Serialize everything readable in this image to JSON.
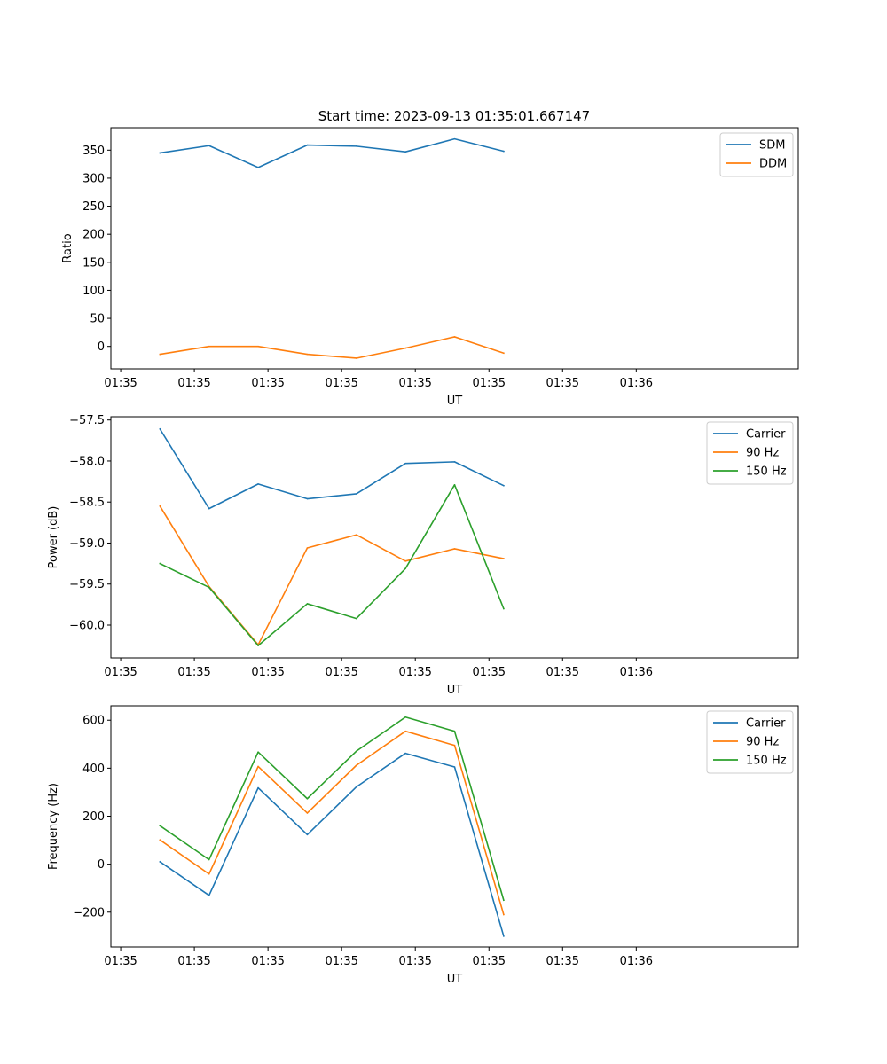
{
  "figure_title": "Start time: 2023-09-13 01:35:01.667147",
  "colors": {
    "c0": "#1f77b4",
    "c1": "#ff7f0e",
    "c2": "#2ca02c"
  },
  "chart_data": [
    {
      "type": "line",
      "title": "Start time: 2023-09-13 01:35:01.667147",
      "xlabel": "UT",
      "ylabel": "Ratio",
      "xlim": [
        0,
        7
      ],
      "x": [
        0.5,
        1.0,
        1.5,
        2.0,
        2.5,
        3.0,
        3.5,
        4.0
      ],
      "xtick_values": [
        0.1,
        0.85,
        1.6,
        2.35,
        3.1,
        3.85,
        4.6,
        5.35
      ],
      "xtick_labels": [
        "01:35",
        "01:35",
        "01:35",
        "01:35",
        "01:35",
        "01:35",
        "01:35",
        "01:36"
      ],
      "ylim": [
        -40,
        390
      ],
      "yticks": [
        0,
        50,
        100,
        150,
        200,
        250,
        300,
        350
      ],
      "ytick_labels": [
        "0",
        "50",
        "100",
        "150",
        "200",
        "250",
        "300",
        "350"
      ],
      "legend_position": "top-right",
      "series": [
        {
          "name": "SDM",
          "color": "#1f77b4",
          "values": [
            345,
            358,
            319,
            359,
            357,
            347,
            370,
            348
          ]
        },
        {
          "name": "DDM",
          "color": "#ff7f0e",
          "values": [
            -14,
            0,
            0,
            -14,
            -21,
            -3,
            17,
            -12
          ]
        }
      ]
    },
    {
      "type": "line",
      "title": "",
      "xlabel": "UT",
      "ylabel": "Power (dB)",
      "xlim": [
        0,
        7
      ],
      "x": [
        0.5,
        1.0,
        1.5,
        2.0,
        2.5,
        3.0,
        3.5,
        4.0
      ],
      "xtick_values": [
        0.1,
        0.85,
        1.6,
        2.35,
        3.1,
        3.85,
        4.6,
        5.35
      ],
      "xtick_labels": [
        "01:35",
        "01:35",
        "01:35",
        "01:35",
        "01:35",
        "01:35",
        "01:35",
        "01:36"
      ],
      "ylim": [
        -60.4,
        -57.46
      ],
      "yticks": [
        -60.0,
        -59.5,
        -59.0,
        -58.5,
        -58.0,
        -57.5
      ],
      "ytick_labels": [
        "−60.0",
        "−59.5",
        "−59.0",
        "−58.5",
        "−58.0",
        "−57.5"
      ],
      "legend_position": "top-right",
      "series": [
        {
          "name": "Carrier",
          "color": "#1f77b4",
          "values": [
            -57.61,
            -58.58,
            -58.28,
            -58.46,
            -58.4,
            -58.03,
            -58.01,
            -58.3
          ]
        },
        {
          "name": "90 Hz",
          "color": "#ff7f0e",
          "values": [
            -58.55,
            -59.53,
            -60.24,
            -59.06,
            -58.9,
            -59.22,
            -59.07,
            -59.19
          ]
        },
        {
          "name": "150 Hz",
          "color": "#2ca02c",
          "values": [
            -59.25,
            -59.54,
            -60.25,
            -59.74,
            -59.92,
            -59.31,
            -58.29,
            -59.8
          ]
        }
      ]
    },
    {
      "type": "line",
      "title": "",
      "xlabel": "UT",
      "ylabel": "Frequency (Hz)",
      "xlim": [
        0,
        7
      ],
      "x": [
        0.5,
        1.0,
        1.5,
        2.0,
        2.5,
        3.0,
        3.5,
        4.0
      ],
      "xtick_values": [
        0.1,
        0.85,
        1.6,
        2.35,
        3.1,
        3.85,
        4.6,
        5.35
      ],
      "xtick_labels": [
        "01:35",
        "01:35",
        "01:35",
        "01:35",
        "01:35",
        "01:35",
        "01:35",
        "01:36"
      ],
      "ylim": [
        -345,
        660
      ],
      "yticks": [
        -200,
        0,
        200,
        400,
        600
      ],
      "ytick_labels": [
        "−200",
        "0",
        "200",
        "400",
        "600"
      ],
      "legend_position": "top-right",
      "series": [
        {
          "name": "Carrier",
          "color": "#1f77b4",
          "values": [
            10,
            -130,
            318,
            123,
            322,
            462,
            405,
            -300
          ]
        },
        {
          "name": "90 Hz",
          "color": "#ff7f0e",
          "values": [
            101,
            -41,
            407,
            213,
            412,
            554,
            495,
            -210
          ]
        },
        {
          "name": "150 Hz",
          "color": "#2ca02c",
          "values": [
            160,
            19,
            467,
            273,
            471,
            613,
            554,
            -150
          ]
        }
      ]
    }
  ]
}
